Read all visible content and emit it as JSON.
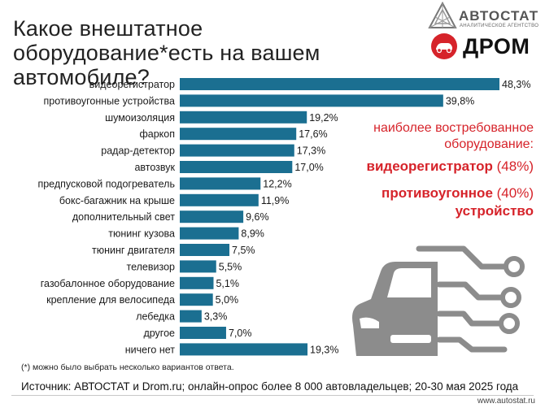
{
  "title": "Какое внештатное оборудование*есть на вашем автомобиле?",
  "logos": {
    "autostat_name": "АВТОСТАТ",
    "autostat_sub": "АНАЛИТИЧЕСКОЕ АГЕНТСТВО",
    "drom_name": "ДРОМ"
  },
  "callout": {
    "heading": "наиболее востребованное оборудование:",
    "item1_name": "видеорегистратор",
    "item1_pct": "(48%)",
    "item2_name_line1": "противоугонное",
    "item2_pct": "(40%)",
    "item2_name_line2": "устройство"
  },
  "footnote": "(*) можно было выбрать несколько вариантов ответа.",
  "source": "Источник: АВТОСТАТ и Drom.ru; онлайн-опрос более 8 000 автовладельцев; 20-30 мая 2025 года",
  "url": "www.autostat.ru",
  "colors": {
    "bar": "#1b6f91",
    "accent": "#d6232a",
    "icon": "#8c8c8c"
  },
  "chart_data": {
    "type": "bar",
    "orientation": "horizontal",
    "categories": [
      "видеорегистратор",
      "противоугонные устройства",
      "шумоизоляция",
      "фаркоп",
      "радар-детектор",
      "автозвук",
      "предпусковой подогреватель",
      "бокс-багажник на крыше",
      "дополнительный свет",
      "тюнинг кузова",
      "тюнинг двигателя",
      "телевизор",
      "газобалонное оборудование",
      "крепление для велосипеда",
      "лебедка",
      "другое",
      "ничего нет"
    ],
    "values": [
      48.3,
      39.8,
      19.2,
      17.6,
      17.3,
      17.0,
      12.2,
      11.9,
      9.6,
      8.9,
      7.5,
      5.5,
      5.1,
      5.0,
      3.3,
      7.0,
      19.3
    ],
    "value_labels": [
      "48,3%",
      "39,8%",
      "19,2%",
      "17,6%",
      "17,3%",
      "17,0%",
      "12,2%",
      "11,9%",
      "9,6%",
      "8,9%",
      "7,5%",
      "5,5%",
      "5,1%",
      "5,0%",
      "3,3%",
      "7,0%",
      "19,3%"
    ],
    "xlim": [
      0,
      48.3
    ],
    "grid": false,
    "legend": "none"
  }
}
